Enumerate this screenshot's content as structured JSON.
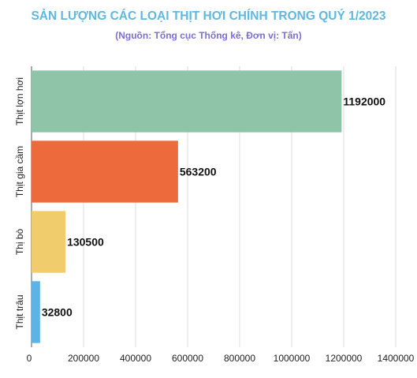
{
  "chart_data": {
    "type": "bar",
    "orientation": "horizontal",
    "title": "SẢN LƯỢNG CÁC LOẠI THỊT HƠI CHÍNH TRONG QUÝ 1/2023",
    "subtitle": "(Nguồn: Tổng cục Thống kê, Đơn vị: Tấn)",
    "categories": [
      "Thịt lợn hơi",
      "Thịt gia cầm",
      "Thị bò",
      "Thịt trâu"
    ],
    "values": [
      1192000,
      563200,
      130500,
      32800
    ],
    "value_labels": [
      "1192000",
      "563200",
      "130500",
      "32800"
    ],
    "colors": [
      "#8fc4a9",
      "#ec6a3c",
      "#f0cc6c",
      "#5cb3e6"
    ],
    "xlim": [
      0,
      1400000
    ],
    "xticks": [
      0,
      200000,
      400000,
      600000,
      800000,
      1000000,
      1200000,
      1400000
    ],
    "xtick_labels": [
      "0",
      "200000",
      "400000",
      "600000",
      "800000",
      "1000000",
      "1200000",
      "1400000"
    ],
    "grid": true,
    "legend": "none"
  }
}
